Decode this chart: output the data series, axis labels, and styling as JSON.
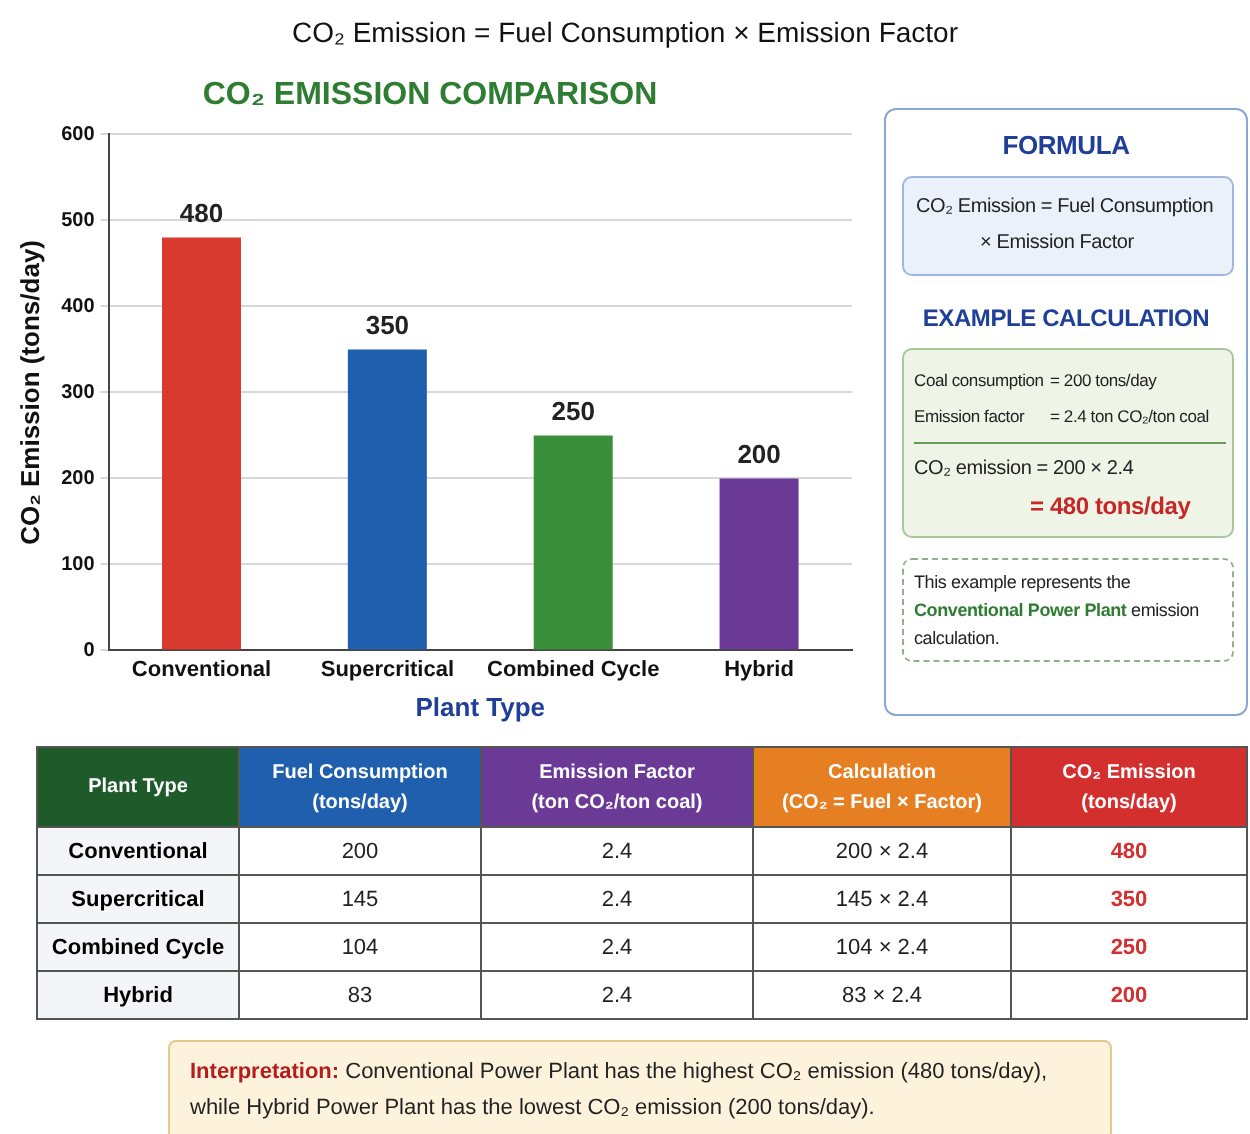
{
  "chart_data": [
    {
      "type": "bar",
      "title": "CO₂ EMISSION COMPARISON",
      "xlabel": "Plant Type",
      "ylabel": "CO₂ Emission (tons/day)",
      "categories": [
        "Conventional",
        "Supercritical",
        "Combined Cycle",
        "Hybrid"
      ],
      "values": [
        480,
        350,
        250,
        200
      ],
      "colors": [
        "#d93a2f",
        "#1f5fad",
        "#3a8f3a",
        "#6b3a96"
      ],
      "ylim": [
        0,
        600
      ],
      "yticks": [
        0,
        100,
        200,
        300,
        400,
        500,
        600
      ],
      "grid": "y",
      "data_labels": true,
      "annotations": [
        "CO₂ Emission = Fuel Consumption × Emission Factor"
      ]
    },
    {
      "type": "other",
      "title": "FORMULA",
      "annotations": [
        "CO₂ Emission = Fuel Consumption",
        "× Emission Factor",
        "EXAMPLE CALCULATION",
        "Coal consumption",
        "= 200 tons/day",
        "Emission factor",
        "= 2.4 ton CO₂/ton coal",
        "CO₂ emission = 200 × 2.4",
        "= 480 tons/day",
        "This example represents the ",
        "Conventional Power Plant",
        " emission calculation."
      ]
    },
    {
      "type": "other",
      "categories": [
        "Plant Type",
        "Fuel Consumption\n(tons/day)",
        "Emission Factor\n(ton CO₂/ton coal)",
        "Calculation\n(CO₂ = Fuel × Factor)",
        "CO₂ Emission\n(tons/day)"
      ],
      "colors": [
        "#1e5a2a",
        "#1f5fad",
        "#6b3a96",
        "#e67e22",
        "#d32f2f"
      ],
      "y_categories": [
        "Conventional",
        "Supercritical",
        "Combined Cycle",
        "Hybrid"
      ],
      "cell_labels": [
        [
          "200",
          "2.4",
          "200 × 2.4",
          "480"
        ],
        [
          "145",
          "2.4",
          "145 × 2.4",
          "350"
        ],
        [
          "104",
          "2.4",
          "104 × 2.4",
          "250"
        ],
        [
          "83",
          "2.4",
          "83 × 2.4",
          "200"
        ]
      ],
      "annotations": [
        "Interpretation:",
        "Conventional Power Plant has the highest CO₂ emission (480 tons/day), while Hybrid Power Plant has the lowest CO₂ emission (200 tons/day)."
      ]
    }
  ]
}
